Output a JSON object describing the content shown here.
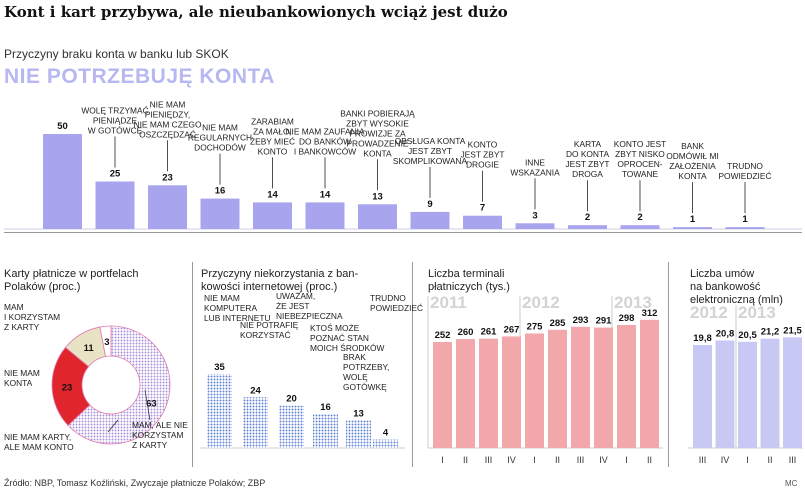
{
  "title": "Kont i kart przybywa, ale nieubankowionych wciąż jest dużo",
  "subtitle": "Przyczyny braku konta w banku lub SKOK",
  "source": "Źródło: NBP, Tomasz Koźliński, Zwyczaje płatnicze Polaków; ZBP",
  "credit": "MC",
  "colors": {
    "bars": "#a8a4ee",
    "accent": "#b7b7f2",
    "red": "#e0262c",
    "beige": "#e9e3c5",
    "pink": "#f2a7ab",
    "lilac": "#c8c8f5"
  },
  "chart_data": [
    {
      "type": "bar",
      "title": "Przyczyny braku konta w banku lub SKOK",
      "categories": [
        "NIE POTRZEBUJĘ KONTA",
        "WOLĘ TRZYMAĆ PIENIĄDZE W GOTÓWCE",
        "NIE MAM PIENIĘDZY, NIE MAM CZEGO OSZCZĘDZAĆ",
        "NIE MAM REGULARNYCH DOCHODÓW",
        "ZARABIAM ZA MAŁO, ŻEBY MIEĆ KONTO",
        "NIE MAM ZAUFANIA DO BANKÓW I BANKOWCÓW",
        "BANKI POBIERAJĄ ZBYT WYSOKIE PROWIZJE ZA PROWADZENIE KONTA",
        "OBSŁUGA KONTA JEST ZBYT SKOMPLIKOWANA",
        "KONTO JEST ZBYT DROGIE",
        "INNE WSKAZANIA",
        "KARTA DO KONTA JEST ZBYT DROGA",
        "KONTO JEST ZBYT NISKO OPROCENTOWANE",
        "BANK ODMÓWIŁ MI ZAŁOŻENIA KONTA",
        "TRUDNO POWIEDZIEĆ"
      ],
      "labels_lines": [
        [],
        [
          "WOLĘ TRZYMAĆ",
          "PIENIĄDZE",
          "W GOTÓWCE"
        ],
        [
          "NIE MAM",
          "PIENIĘDZY,",
          "NIE MAM CZEGO",
          "OSZCZĘDZAĆ"
        ],
        [
          "NIE MAM",
          "REGULARNYCH",
          "DOCHODÓW"
        ],
        [
          "ZARABIAM",
          "ZA MAŁO,",
          "ŻEBY MIEĆ",
          "KONTO"
        ],
        [
          "NIE MAM ZAUFANIA",
          "DO BANKÓW",
          "I BANKOWCÓW"
        ],
        [
          "BANKI POBIERAJĄ",
          "ZBYT WYSOKIE",
          "PROWIZJE ZA",
          "PROWADZENIE",
          "KONTA"
        ],
        [
          "OBSŁUGA KONTA",
          "JEST ZBYT",
          "SKOMPLIKOWANA"
        ],
        [
          "KONTO",
          "JEST ZBYT",
          "DROGIE"
        ],
        [
          "INNE",
          "WSKAZANIA"
        ],
        [
          "KARTA",
          "DO KONTA",
          "JEST ZBYT",
          "DROGA"
        ],
        [
          "KONTO JEST",
          "ZBYT NISKO",
          "OPROCEN-",
          "TOWANE"
        ],
        [
          "BANK",
          "ODMÓWIŁ MI",
          "ZAŁOŻENIA",
          "KONTA"
        ],
        [
          "TRUDNO",
          "POWIEDZIEĆ"
        ]
      ],
      "values": [
        50,
        25,
        23,
        16,
        14,
        14,
        13,
        9,
        7,
        3,
        2,
        2,
        1,
        1
      ],
      "ylim": [
        0,
        50
      ]
    },
    {
      "type": "pie",
      "title": "Karty płatnicze w portfelach Polaków (proc.)",
      "labels": [
        "MAM I KORZYSTAM Z KARTY",
        "NIE MAM KONTA",
        "NIE MAM KARTY, ALE MAM KONTO",
        "MAM, ALE NIE KORZYSTAM Z KARTY"
      ],
      "labels_lines": [
        [
          "MAM",
          "I KORZYSTAM",
          "Z KARTY"
        ],
        [
          "NIE MAM",
          "KONTA"
        ],
        [
          "NIE MAM KARTY,",
          "ALE MAM KONTO"
        ],
        [
          "MAM, ALE NIE",
          "KORZYSTAM",
          "Z KARTY"
        ]
      ],
      "values": [
        63,
        23,
        11,
        3
      ]
    },
    {
      "type": "bar",
      "title": "Przyczyny niekorzystania z bankowości internetowej (proc.)",
      "title_lines": [
        "Przyczyny niekorzystania z ban-",
        "kowości internetowej (proc.)"
      ],
      "categories": [
        "NIE MAM KOMPUTERA LUB INTERNETU",
        "NIE POTRAFIĘ KORZYSTAĆ",
        "UWAŻAM, ŻE JEST NIEBEZPIECZNA",
        "KTOŚ MOŻE POZNAĆ STAN MOICH ŚRODKÓW",
        "BRAK POTRZEBY, WOLĘ GOTÓWKĘ",
        "TRUDNO POWIEDZIEĆ"
      ],
      "labels_lines": [
        [
          "NIE MAM",
          "KOMPUTERA",
          "LUB INTERNETU"
        ],
        [
          "NIE POTRAFIĘ",
          "KORZYSTAĆ"
        ],
        [
          "UWAŻAM,",
          "ŻE JEST",
          "NIEBEZPIECZNA"
        ],
        [
          "KTOŚ MOŻE",
          "POZNAĆ STAN",
          "MOICH ŚRODKÓW"
        ],
        [
          "BRAK",
          "POTRZEBY,",
          "WOLĘ",
          "GOTÓWKĘ"
        ],
        [
          "TRUDNO",
          "POWIEDZIEĆ"
        ]
      ],
      "values": [
        35,
        24,
        20,
        16,
        13,
        4
      ]
    },
    {
      "type": "bar",
      "title": "Liczba terminali płatniczych (tys.)",
      "title_lines": [
        "Liczba terminali",
        "płatniczych (tys.)"
      ],
      "years": [
        "2011",
        "2012",
        "2013"
      ],
      "categories": [
        "I",
        "II",
        "III",
        "IV",
        "I",
        "II",
        "III",
        "IV",
        "I",
        "II"
      ],
      "values": [
        252,
        260,
        261,
        267,
        275,
        285,
        293,
        291,
        298,
        312
      ],
      "ylim": [
        0,
        312
      ]
    },
    {
      "type": "bar",
      "title": "Liczba umów na bankowość elektroniczną (mln)",
      "title_lines": [
        "Liczba umów",
        "na bankowość",
        "elektroniczną (mln)"
      ],
      "years": [
        "2012",
        "2013"
      ],
      "categories": [
        "III",
        "IV",
        "I",
        "II",
        "III"
      ],
      "values": [
        "19,8",
        "20,8",
        "20,5",
        "21,2",
        "21,5"
      ],
      "values_num": [
        19.8,
        20.8,
        20.5,
        21.2,
        21.5
      ]
    }
  ]
}
